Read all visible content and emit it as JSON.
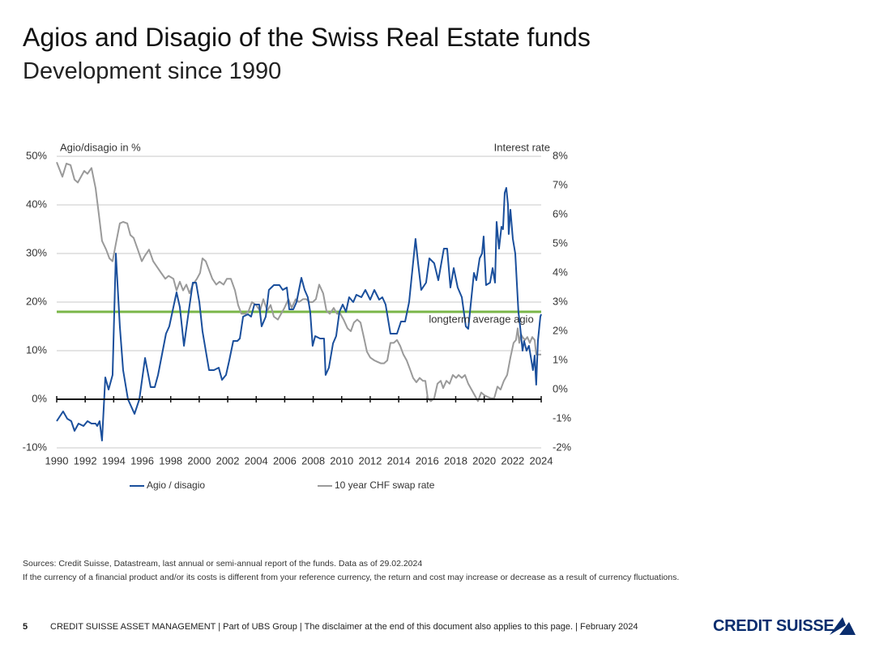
{
  "chart_data": {
    "type": "line",
    "title": "Agios and Disagio of the Swiss Real Estate funds",
    "subtitle": "Development since 1990",
    "ylabel": "Agio/disagio in %",
    "y2label": "Interest rate",
    "xlim": [
      1990,
      2024
    ],
    "xticks": [
      1990,
      1992,
      1994,
      1996,
      1998,
      2000,
      2002,
      2004,
      2006,
      2008,
      2010,
      2012,
      2014,
      2016,
      2018,
      2020,
      2022,
      2024
    ],
    "ylim": [
      -10,
      50
    ],
    "yticks": [
      {
        "value": -10,
        "label": "-10%"
      },
      {
        "value": 0,
        "label": "0%"
      },
      {
        "value": 10,
        "label": "10%"
      },
      {
        "value": 20,
        "label": "20%"
      },
      {
        "value": 30,
        "label": "30%"
      },
      {
        "value": 40,
        "label": "40%"
      },
      {
        "value": 50,
        "label": "50%"
      }
    ],
    "y2lim": [
      -2,
      8
    ],
    "y2ticks": [
      {
        "value": -2,
        "label": "-2%"
      },
      {
        "value": -1,
        "label": "-1%"
      },
      {
        "value": 0,
        "label": "0%"
      },
      {
        "value": 1,
        "label": "1%"
      },
      {
        "value": 2,
        "label": "2%"
      },
      {
        "value": 3,
        "label": "3%"
      },
      {
        "value": 4,
        "label": "4%"
      },
      {
        "value": 5,
        "label": "5%"
      },
      {
        "value": 6,
        "label": "6%"
      },
      {
        "value": 7,
        "label": "7%"
      },
      {
        "value": 8,
        "label": "8%"
      }
    ],
    "grid": true,
    "legend": "bottom",
    "reference_line": {
      "value": 18,
      "label": "longterm average agio",
      "color": "#7ab648"
    },
    "series": [
      {
        "name": "Agio / disagio",
        "color": "#1a4f9c",
        "axis": "y",
        "x": [
          1990.0,
          1990.45,
          1990.74,
          1991.02,
          1991.25,
          1991.53,
          1991.88,
          1992.16,
          1992.44,
          1992.73,
          1992.84,
          1993.01,
          1993.18,
          1993.41,
          1993.64,
          1993.92,
          1994.15,
          1994.43,
          1994.66,
          1995.0,
          1995.46,
          1995.8,
          1996.2,
          1996.59,
          1996.88,
          1997.11,
          1997.67,
          1997.9,
          1998.41,
          1998.64,
          1998.93,
          1999.21,
          1999.55,
          1999.78,
          2000.01,
          2000.23,
          2000.46,
          2000.69,
          2001.03,
          2001.37,
          2001.6,
          2001.88,
          2002.11,
          2002.39,
          2002.68,
          2002.85,
          2003.08,
          2003.42,
          2003.64,
          2003.87,
          2004.21,
          2004.38,
          2004.67,
          2004.89,
          2005.24,
          2005.63,
          2005.86,
          2006.15,
          2006.32,
          2006.6,
          2006.83,
          2007.17,
          2007.4,
          2007.62,
          2007.79,
          2007.96,
          2008.14,
          2008.48,
          2008.76,
          2008.87,
          2009.1,
          2009.39,
          2009.61,
          2009.84,
          2010.07,
          2010.3,
          2010.52,
          2010.81,
          2011.03,
          2011.38,
          2011.66,
          2012.0,
          2012.29,
          2012.63,
          2012.85,
          2013.08,
          2013.42,
          2013.88,
          2014.16,
          2014.45,
          2014.73,
          2015.18,
          2015.36,
          2015.58,
          2015.92,
          2016.15,
          2016.49,
          2016.78,
          2017.17,
          2017.4,
          2017.63,
          2017.86,
          2018.14,
          2018.43,
          2018.71,
          2018.88,
          2019.28,
          2019.45,
          2019.68,
          2019.85,
          2019.96,
          2020.13,
          2020.41,
          2020.59,
          2020.76,
          2020.87,
          2021.04,
          2021.21,
          2021.32,
          2021.44,
          2021.55,
          2021.67,
          2021.72,
          2021.84,
          2022.01,
          2022.18,
          2022.4,
          2022.52,
          2022.69,
          2022.8,
          2022.97,
          2023.14,
          2023.31,
          2023.42,
          2023.54,
          2023.65,
          2023.77,
          2023.94,
          2024.0
        ],
        "values": [
          -4.5,
          -2.5,
          -4,
          -4.5,
          -6.5,
          -5,
          -5.5,
          -4.5,
          -5,
          -5,
          -5.5,
          -4.5,
          -8.5,
          4.5,
          2,
          5,
          30,
          15,
          6,
          0,
          -3,
          0,
          8.5,
          2.5,
          2.5,
          5,
          13.5,
          15,
          22,
          19,
          11,
          17,
          24,
          24,
          20,
          14,
          10,
          6,
          6,
          6.5,
          4,
          5,
          8,
          12,
          12,
          12.5,
          17,
          17.5,
          17,
          19.5,
          19.5,
          15,
          17,
          22.5,
          23.5,
          23.5,
          22.5,
          23,
          18.5,
          18.5,
          20,
          25,
          22.5,
          21,
          18,
          11,
          13,
          12.5,
          12.5,
          5,
          6.5,
          11.5,
          13,
          18,
          19.5,
          18,
          21,
          20,
          21.5,
          21,
          22.5,
          20.5,
          22.5,
          20.5,
          21,
          19.5,
          13.5,
          13.5,
          16,
          16,
          20,
          33,
          28,
          22.5,
          24,
          29,
          28,
          24.5,
          31,
          31,
          23,
          27,
          23,
          21,
          15,
          14.5,
          26,
          24.5,
          29,
          30,
          33.5,
          23.5,
          24,
          27,
          24,
          36.5,
          31,
          35.5,
          35,
          42.5,
          43.5,
          40,
          34,
          39,
          33,
          30,
          18,
          15,
          10,
          12,
          10,
          11,
          8,
          6,
          9,
          3,
          12,
          17,
          17.5
        ]
      },
      {
        "name": "10 year CHF swap rate",
        "color": "#9a9a9a",
        "axis": "y2",
        "x": [
          1990.0,
          1990.4,
          1990.68,
          1990.97,
          1991.25,
          1991.48,
          1991.93,
          1992.16,
          1992.44,
          1992.73,
          1992.96,
          1993.18,
          1993.47,
          1993.7,
          1993.92,
          1994.15,
          1994.43,
          1994.66,
          1994.95,
          1995.17,
          1995.4,
          1995.69,
          1995.97,
          1996.2,
          1996.48,
          1996.77,
          1997.05,
          1997.33,
          1997.62,
          1997.85,
          1998.19,
          1998.41,
          1998.64,
          1998.87,
          1999.1,
          1999.32,
          1999.55,
          1999.84,
          2000.06,
          2000.23,
          2000.46,
          2000.69,
          2000.92,
          2001.2,
          2001.43,
          2001.71,
          2001.94,
          2002.22,
          2002.51,
          2002.73,
          2002.96,
          2003.25,
          2003.47,
          2003.7,
          2003.99,
          2004.27,
          2004.5,
          2004.78,
          2005.01,
          2005.24,
          2005.52,
          2005.75,
          2005.98,
          2006.26,
          2006.49,
          2006.77,
          2007.0,
          2007.28,
          2007.51,
          2007.74,
          2007.96,
          2008.19,
          2008.42,
          2008.7,
          2008.93,
          2009.16,
          2009.44,
          2009.67,
          2009.9,
          2010.13,
          2010.41,
          2010.64,
          2010.86,
          2011.09,
          2011.32,
          2011.55,
          2011.77,
          2012.0,
          2012.29,
          2012.51,
          2012.74,
          2012.97,
          2013.2,
          2013.42,
          2013.65,
          2013.88,
          2014.1,
          2014.33,
          2014.56,
          2014.79,
          2015.01,
          2015.24,
          2015.47,
          2015.7,
          2015.87,
          2016.04,
          2016.26,
          2016.49,
          2016.72,
          2016.95,
          2017.12,
          2017.35,
          2017.57,
          2017.8,
          2018.03,
          2018.2,
          2018.43,
          2018.65,
          2018.88,
          2019.11,
          2019.34,
          2019.56,
          2019.79,
          2020.02,
          2020.24,
          2020.47,
          2020.7,
          2020.93,
          2021.15,
          2021.38,
          2021.61,
          2021.84,
          2022.06,
          2022.23,
          2022.35,
          2022.46,
          2022.58,
          2022.69,
          2022.86,
          2023.03,
          2023.2,
          2023.37,
          2023.54,
          2023.65,
          2023.77,
          2023.88,
          2024.0
        ],
        "values": [
          7.8,
          7.3,
          7.75,
          7.7,
          7.2,
          7.1,
          7.5,
          7.4,
          7.6,
          6.9,
          6.0,
          5.1,
          4.8,
          4.5,
          4.4,
          5.0,
          5.7,
          5.75,
          5.7,
          5.3,
          5.2,
          4.8,
          4.4,
          4.6,
          4.8,
          4.4,
          4.2,
          4.0,
          3.8,
          3.9,
          3.8,
          3.4,
          3.7,
          3.4,
          3.6,
          3.3,
          3.6,
          3.8,
          4.0,
          4.5,
          4.4,
          4.1,
          3.8,
          3.6,
          3.7,
          3.6,
          3.8,
          3.8,
          3.4,
          2.9,
          2.6,
          2.6,
          2.7,
          3.0,
          2.9,
          2.7,
          3.1,
          2.7,
          2.9,
          2.5,
          2.4,
          2.6,
          2.8,
          3.1,
          2.8,
          3.1,
          3.0,
          3.1,
          3.1,
          3.0,
          3.0,
          3.1,
          3.6,
          3.3,
          2.7,
          2.6,
          2.8,
          2.6,
          2.6,
          2.4,
          2.1,
          2.0,
          2.3,
          2.4,
          2.3,
          1.8,
          1.3,
          1.1,
          1.0,
          0.95,
          0.9,
          0.9,
          1.0,
          1.6,
          1.6,
          1.7,
          1.5,
          1.2,
          1.0,
          0.7,
          0.4,
          0.25,
          0.4,
          0.3,
          0.3,
          -0.3,
          -0.4,
          -0.3,
          0.2,
          0.3,
          0.05,
          0.3,
          0.2,
          0.5,
          0.4,
          0.5,
          0.4,
          0.5,
          0.2,
          0.0,
          -0.2,
          -0.4,
          -0.1,
          -0.2,
          -0.25,
          -0.3,
          -0.3,
          0.1,
          0.0,
          0.3,
          0.5,
          1.1,
          1.6,
          1.7,
          2.1,
          1.6,
          1.9,
          1.8,
          1.7,
          1.8,
          1.6,
          1.8,
          1.7,
          1.2,
          1.2,
          1.2,
          1.2
        ]
      }
    ]
  },
  "notes": [
    "Sources: Credit Suisse, Datastream, last annual or semi-annual report of the funds. Data as of 29.02.2024",
    "If the currency of a financial product and/or its costs is different from your reference currency, the return and cost may increase or decrease as a result of currency fluctuations."
  ],
  "footer": {
    "page": "5",
    "text": "CREDIT SUISSE ASSET MANAGEMENT | Part of UBS Group | The disclaimer at the end of this document also applies to this page. | February 2024",
    "logo": "CREDIT SUISSE"
  }
}
